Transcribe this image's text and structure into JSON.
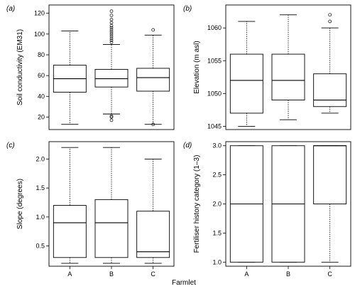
{
  "figure": {
    "xlabel": "Farmlet"
  },
  "chart_data": [
    {
      "type": "boxplot",
      "panel_label": "(a)",
      "ylabel": "Soil conductivity (EM31)",
      "categories": [
        "A",
        "B",
        "C"
      ],
      "ylim": [
        8,
        128
      ],
      "yticks": [
        20,
        40,
        60,
        80,
        100,
        120
      ],
      "boxes": [
        {
          "category": "A",
          "whisker_low": 13,
          "q1": 44,
          "median": 57,
          "q3": 70,
          "whisker_high": 103,
          "outliers": []
        },
        {
          "category": "B",
          "whisker_low": 23,
          "q1": 49,
          "median": 57,
          "q3": 66,
          "whisker_high": 90,
          "outliers": [
            92,
            94,
            96,
            98,
            100,
            102,
            104,
            106,
            108,
            111,
            114,
            118,
            122,
            21,
            20,
            17
          ]
        },
        {
          "category": "C",
          "whisker_low": 13,
          "q1": 45,
          "median": 58,
          "q3": 67,
          "whisker_high": 99,
          "outliers": [
            104,
            13
          ]
        }
      ]
    },
    {
      "type": "boxplot",
      "panel_label": "(b)",
      "ylabel": "Elevation (m asl)",
      "categories": [
        "A",
        "B",
        "C"
      ],
      "ylim": [
        1044.5,
        1063.5
      ],
      "yticks": [
        1045,
        1050,
        1055,
        1060
      ],
      "boxes": [
        {
          "category": "A",
          "whisker_low": 1045,
          "q1": 1047,
          "median": 1052,
          "q3": 1056,
          "whisker_high": 1061,
          "outliers": []
        },
        {
          "category": "B",
          "whisker_low": 1046,
          "q1": 1049,
          "median": 1052,
          "q3": 1056,
          "whisker_high": 1062,
          "outliers": []
        },
        {
          "category": "C",
          "whisker_low": 1047,
          "q1": 1048,
          "median": 1049,
          "q3": 1053,
          "whisker_high": 1060,
          "outliers": [
            1061,
            1062
          ]
        }
      ]
    },
    {
      "type": "boxplot",
      "panel_label": "(c)",
      "ylabel": "Slope (degrees)",
      "categories": [
        "A",
        "B",
        "C"
      ],
      "ylim": [
        0.15,
        2.3
      ],
      "yticks": [
        0.5,
        1.0,
        1.5,
        2.0
      ],
      "ytick_labels": [
        "0.5",
        "1.0",
        "1.5",
        "2.0"
      ],
      "boxes": [
        {
          "category": "A",
          "whisker_low": 0.2,
          "q1": 0.3,
          "median": 0.9,
          "q3": 1.2,
          "whisker_high": 2.2,
          "outliers": []
        },
        {
          "category": "B",
          "whisker_low": 0.2,
          "q1": 0.3,
          "median": 0.9,
          "q3": 1.3,
          "whisker_high": 2.2,
          "outliers": []
        },
        {
          "category": "C",
          "whisker_low": 0.2,
          "q1": 0.3,
          "median": 0.4,
          "q3": 1.1,
          "whisker_high": 2.0,
          "outliers": []
        }
      ]
    },
    {
      "type": "boxplot",
      "panel_label": "(d)",
      "ylabel": "Fertiliser history category (1–3)",
      "categories": [
        "A",
        "B",
        "C"
      ],
      "ylim": [
        0.93,
        3.07
      ],
      "yticks": [
        1.0,
        1.5,
        2.0,
        2.5,
        3.0
      ],
      "ytick_labels": [
        "1.0",
        "1.5",
        "2.0",
        "2.5",
        "3.0"
      ],
      "boxes": [
        {
          "category": "A",
          "whisker_low": 1,
          "q1": 1,
          "median": 2,
          "q3": 3,
          "whisker_high": 3,
          "outliers": []
        },
        {
          "category": "B",
          "whisker_low": 1,
          "q1": 1,
          "median": 2,
          "q3": 3,
          "whisker_high": 3,
          "outliers": []
        },
        {
          "category": "C",
          "whisker_low": 1,
          "q1": 2,
          "median": 3,
          "q3": 3,
          "whisker_high": 3,
          "outliers": []
        }
      ]
    }
  ]
}
